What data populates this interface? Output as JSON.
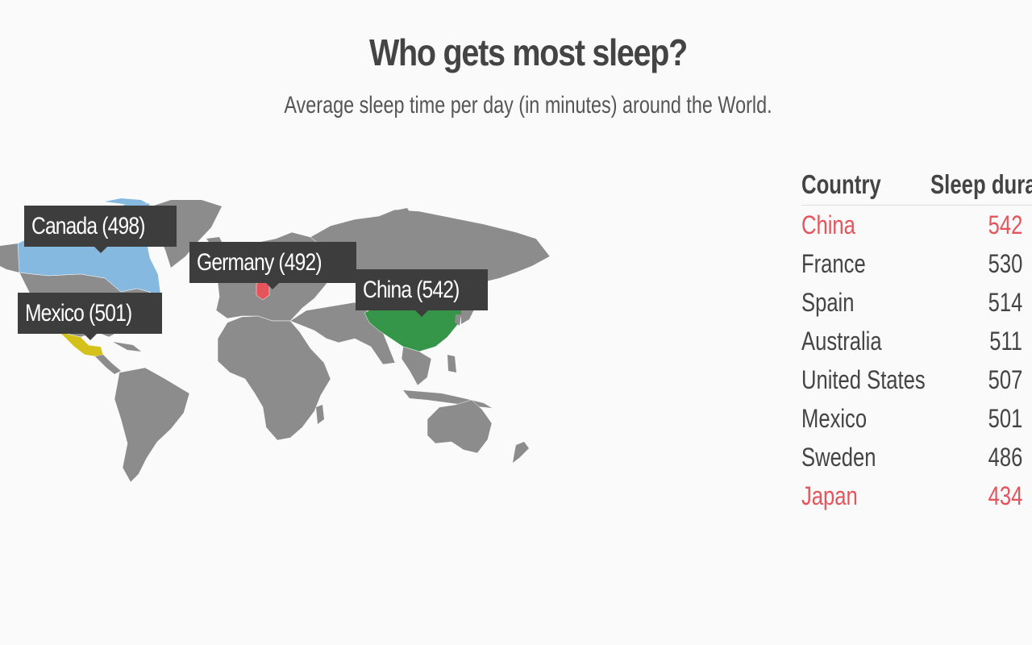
{
  "title": "Who gets most sleep?",
  "subtitle": "Average sleep time per day (in minutes) around the World.",
  "colors": {
    "land": "#8c8c8c",
    "canada": "#86b9e0",
    "mexico": "#d4c21b",
    "germany": "#e5545b",
    "china": "#35964a",
    "highlight_text": "#e5545b",
    "tooltip_bg": "#3d3d3d"
  },
  "tooltips": {
    "canada": "Canada (498)",
    "germany": "Germany (492)",
    "mexico": "Mexico (501)",
    "china": "China (542)"
  },
  "table": {
    "headers": {
      "country": "Country",
      "duration": "Sleep duration"
    },
    "rows": [
      {
        "country": "China",
        "value": "542",
        "highlight": true
      },
      {
        "country": "France",
        "value": "530",
        "highlight": false
      },
      {
        "country": "Spain",
        "value": "514",
        "highlight": false
      },
      {
        "country": "Australia",
        "value": "511",
        "highlight": false
      },
      {
        "country": "United States",
        "value": "507",
        "highlight": false
      },
      {
        "country": "Mexico",
        "value": "501",
        "highlight": false
      },
      {
        "country": "Sweden",
        "value": "486",
        "highlight": false
      },
      {
        "country": "Japan",
        "value": "434",
        "highlight": true
      }
    ]
  }
}
